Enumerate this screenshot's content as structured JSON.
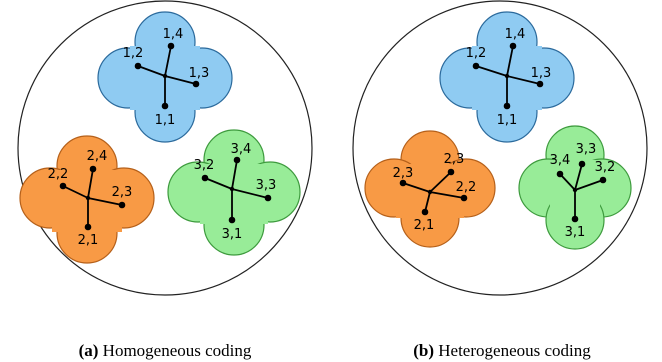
{
  "colors": {
    "blue": "#8fcbf2",
    "blue_stroke": "#2b6a9c",
    "orange": "#f89a45",
    "orange_stroke": "#b5601a",
    "green": "#98ec98",
    "green_stroke": "#3d9a3d"
  },
  "panel_a": {
    "caption_tag": "(a)",
    "caption_text": "Homogeneous coding",
    "blue": {
      "n1": "1,1",
      "n2": "1,2",
      "n3": "1,3",
      "n4": "1,4"
    },
    "orange": {
      "n1": "2,1",
      "n2": "2,2",
      "n3": "2,3",
      "n4": "2,4"
    },
    "green": {
      "n1": "3,1",
      "n2": "3,2",
      "n3": "3,3",
      "n4": "3,4"
    }
  },
  "panel_b": {
    "caption_tag": "(b)",
    "caption_text": "Heterogeneous coding",
    "blue": {
      "n1": "1,1",
      "n2": "1,2",
      "n3": "1,3",
      "n4": "1,4"
    },
    "orange": {
      "n1": "2,1",
      "n2": "2,3",
      "n3": "2,2",
      "n4": "2,3"
    },
    "green": {
      "n1": "3,1",
      "n2": "3,4",
      "n3": "3,3",
      "n4": "3,2"
    }
  }
}
